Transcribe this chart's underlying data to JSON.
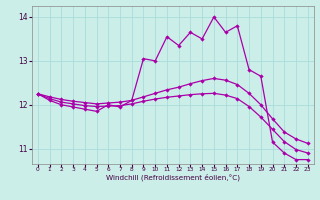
{
  "xlabel": "Windchill (Refroidissement éolien,°C)",
  "xlim": [
    -0.5,
    23.5
  ],
  "ylim": [
    10.65,
    14.25
  ],
  "yticks": [
    11,
    12,
    13,
    14
  ],
  "xticks": [
    0,
    1,
    2,
    3,
    4,
    5,
    6,
    7,
    8,
    9,
    10,
    11,
    12,
    13,
    14,
    15,
    16,
    17,
    18,
    19,
    20,
    21,
    22,
    23
  ],
  "bg_color": "#cceee8",
  "grid_color": "#aaddda",
  "line_color": "#aa00aa",
  "curve1_x": [
    0,
    1,
    2,
    3,
    4,
    5,
    6,
    7,
    8,
    9,
    10,
    11,
    12,
    13,
    14,
    15,
    16,
    17,
    18,
    19,
    20,
    21,
    22,
    23
  ],
  "curve1_y": [
    12.25,
    12.1,
    12.0,
    11.95,
    11.9,
    11.85,
    12.0,
    11.95,
    12.1,
    13.05,
    13.0,
    13.55,
    13.35,
    13.65,
    13.5,
    14.0,
    13.65,
    13.8,
    12.8,
    12.65,
    11.15,
    10.9,
    10.75,
    10.75
  ],
  "curve2_x": [
    0,
    1,
    2,
    3,
    4,
    5,
    6,
    7,
    8,
    9,
    10,
    11,
    12,
    13,
    14,
    15,
    16,
    17,
    18,
    19,
    20,
    21,
    22,
    23
  ],
  "curve2_y": [
    12.25,
    12.18,
    12.12,
    12.08,
    12.05,
    12.02,
    12.04,
    12.06,
    12.1,
    12.18,
    12.26,
    12.34,
    12.4,
    12.48,
    12.55,
    12.6,
    12.56,
    12.46,
    12.26,
    12.0,
    11.68,
    11.38,
    11.22,
    11.12
  ],
  "curve3_x": [
    0,
    1,
    2,
    3,
    4,
    5,
    6,
    7,
    8,
    9,
    10,
    11,
    12,
    13,
    14,
    15,
    16,
    17,
    18,
    19,
    20,
    21,
    22,
    23
  ],
  "curve3_y": [
    12.25,
    12.14,
    12.06,
    12.02,
    11.98,
    11.96,
    11.97,
    11.98,
    12.02,
    12.08,
    12.13,
    12.17,
    12.2,
    12.23,
    12.25,
    12.26,
    12.22,
    12.14,
    11.96,
    11.72,
    11.44,
    11.16,
    10.98,
    10.9
  ]
}
